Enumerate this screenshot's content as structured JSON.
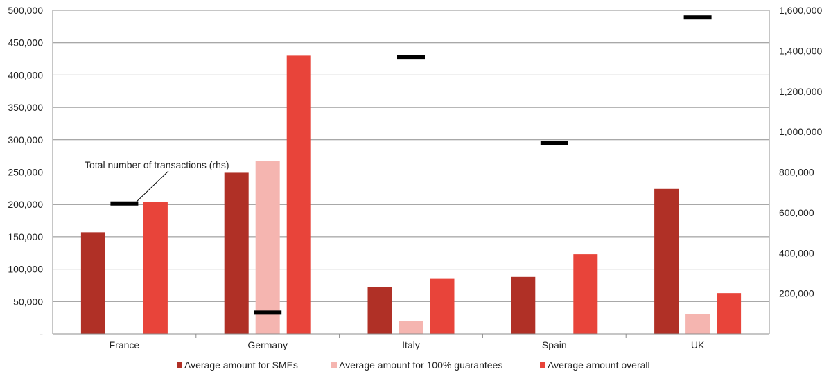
{
  "chart_data": {
    "type": "bar",
    "categories": [
      "France",
      "Germany",
      "Italy",
      "Spain",
      "UK"
    ],
    "series": [
      {
        "name": "Average amount for SMEs",
        "axis": "left",
        "color": "#b03026",
        "values": [
          157000,
          249000,
          72000,
          88000,
          224000
        ]
      },
      {
        "name": "Average amount for 100% guarantees",
        "axis": "left",
        "color": "#f5b5b0",
        "values": [
          null,
          267000,
          20000,
          null,
          30000
        ]
      },
      {
        "name": "Average amount overall",
        "axis": "left",
        "color": "#e8443a",
        "values": [
          204000,
          430000,
          85000,
          123000,
          63000
        ]
      }
    ],
    "marker_series": {
      "name": "Total number of transactions",
      "axis": "right",
      "color": "#000000",
      "values": [
        645000,
        105000,
        1370000,
        945000,
        1565000
      ]
    },
    "annotation": "Total number of transactions (rhs)",
    "left_axis": {
      "min": 0,
      "max": 500000,
      "ticks": [
        0,
        50000,
        100000,
        150000,
        200000,
        250000,
        300000,
        350000,
        400000,
        450000,
        500000
      ],
      "tick_labels": [
        "-",
        "50,000",
        "100,000",
        "150,000",
        "200,000",
        "250,000",
        "300,000",
        "350,000",
        "400,000",
        "450,000",
        "500,000"
      ]
    },
    "right_axis": {
      "min": 0,
      "max": 1600000,
      "ticks": [
        200000,
        400000,
        600000,
        800000,
        1000000,
        1200000,
        1400000,
        1600000
      ],
      "tick_labels": [
        "200,000",
        "400,000",
        "600,000",
        "800,000",
        "1,000,000",
        "1,200,000",
        "1,400,000",
        "1,600,000"
      ]
    },
    "grid": true,
    "legend_position": "bottom"
  }
}
